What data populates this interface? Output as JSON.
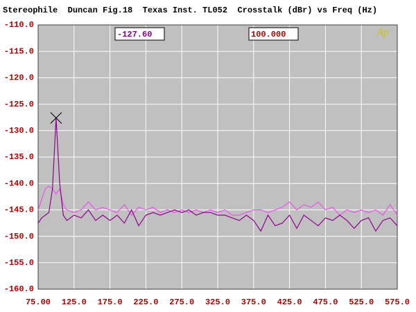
{
  "chart_data": {
    "type": "line",
    "title": "Stereophile  Duncan Fig.18  Texas Inst. TL052  Crosstalk (dBr) vs Freq (Hz)",
    "logo": "Ap",
    "cursor": {
      "x": {
        "value": 100,
        "label": "100.000"
      },
      "y": {
        "value": -127.6,
        "label": "-127.60"
      }
    },
    "x": [
      75,
      80,
      85,
      90,
      95,
      100,
      105,
      110,
      115,
      125,
      135,
      145,
      155,
      165,
      175,
      185,
      195,
      205,
      215,
      225,
      235,
      245,
      255,
      265,
      275,
      285,
      295,
      305,
      315,
      325,
      335,
      345,
      355,
      365,
      375,
      385,
      395,
      405,
      415,
      425,
      435,
      445,
      455,
      465,
      475,
      485,
      495,
      505,
      515,
      525,
      535,
      545,
      555,
      565,
      575
    ],
    "series": [
      {
        "color": "#f050f0",
        "values": [
          -145,
          -143,
          -141,
          -140.5,
          -141,
          -142,
          -141,
          -144,
          -145,
          -145.5,
          -145,
          -143.5,
          -145,
          -144.5,
          -145,
          -145.5,
          -144,
          -146,
          -144.5,
          -145,
          -144.5,
          -145.5,
          -145,
          -145.5,
          -145,
          -145.5,
          -145,
          -145.5,
          -145,
          -145.5,
          -145,
          -146,
          -146,
          -145.5,
          -145,
          -145,
          -145.5,
          -145,
          -144.5,
          -143.5,
          -145,
          -144,
          -144.5,
          -143.5,
          -145,
          -144.5,
          -146,
          -145,
          -145.5,
          -145,
          -145.5,
          -145,
          -146,
          -144,
          -146
        ]
      },
      {
        "color": "#900090",
        "values": [
          -147.5,
          -146.5,
          -146,
          -145.5,
          -141,
          -127.6,
          -140,
          -146,
          -147,
          -146,
          -146.5,
          -145,
          -147,
          -146,
          -147,
          -146,
          -147.5,
          -145,
          -148,
          -146,
          -145.5,
          -146,
          -145.5,
          -145,
          -145.5,
          -145,
          -146,
          -145.5,
          -145.5,
          -146,
          -146,
          -146.5,
          -147,
          -146,
          -147,
          -149,
          -146,
          -148,
          -147.5,
          -146,
          -148.5,
          -146,
          -147,
          -148,
          -146.5,
          -147,
          -146,
          -147,
          -148.5,
          -147,
          -146.5,
          -149,
          -147,
          -146.5,
          -148
        ]
      }
    ],
    "xlim": [
      75,
      575
    ],
    "ylim": [
      -160,
      -110
    ],
    "xticks": [
      {
        "value": 75,
        "label": "75.00"
      },
      {
        "value": 125,
        "label": "125.0"
      },
      {
        "value": 175,
        "label": "175.0"
      },
      {
        "value": 225,
        "label": "225.0"
      },
      {
        "value": 275,
        "label": "275.0"
      },
      {
        "value": 325,
        "label": "325.0"
      },
      {
        "value": 375,
        "label": "375.0"
      },
      {
        "value": 425,
        "label": "425.0"
      },
      {
        "value": 475,
        "label": "475.0"
      },
      {
        "value": 525,
        "label": "525.0"
      },
      {
        "value": 575,
        "label": "575.0"
      }
    ],
    "yticks": [
      {
        "value": -110,
        "label": "-110.0"
      },
      {
        "value": -115,
        "label": "-115.0"
      },
      {
        "value": -120,
        "label": "-120.0"
      },
      {
        "value": -125,
        "label": "-125.0"
      },
      {
        "value": -130,
        "label": "-130.0"
      },
      {
        "value": -135,
        "label": "-135.0"
      },
      {
        "value": -140,
        "label": "-140.0"
      },
      {
        "value": -145,
        "label": "-145.0"
      },
      {
        "value": -150,
        "label": "-150.0"
      },
      {
        "value": -155,
        "label": "-155.0"
      },
      {
        "value": -160,
        "label": "-160.0"
      }
    ],
    "grid": true
  }
}
